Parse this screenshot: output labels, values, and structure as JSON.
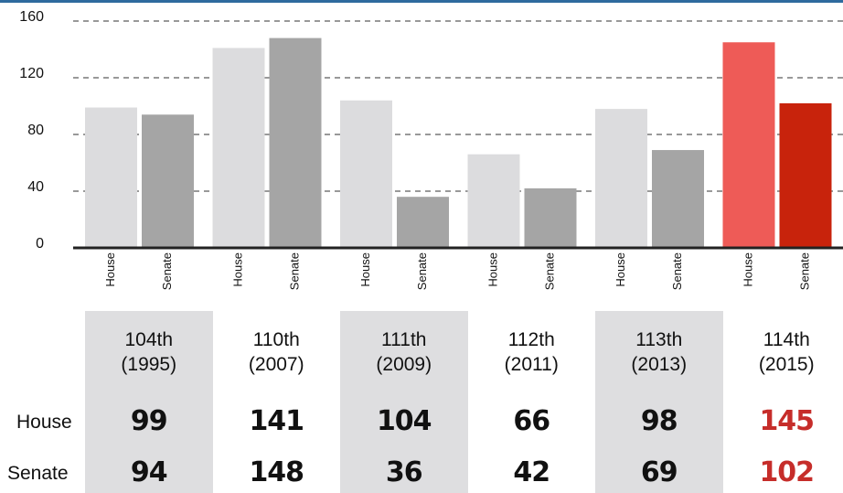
{
  "chart_data": {
    "type": "bar",
    "categories": [
      "104th\n(1995)",
      "110th\n(2007)",
      "111th\n(2009)",
      "112th\n(2011)",
      "113th\n(2013)",
      "114th\n(2015)"
    ],
    "series": [
      {
        "name": "House",
        "colors": [
          "#dcdcde",
          "#dcdcde",
          "#dcdcde",
          "#dcdcde",
          "#dcdcde",
          "#ee5b57"
        ],
        "values": [
          99,
          141,
          104,
          66,
          98,
          145
        ]
      },
      {
        "name": "Senate",
        "colors": [
          "#a5a5a5",
          "#a5a5a5",
          "#a5a5a5",
          "#a5a5a5",
          "#a5a5a5",
          "#c8230c"
        ],
        "values": [
          94,
          148,
          36,
          42,
          69,
          102
        ]
      }
    ],
    "ylim": [
      0,
      160
    ],
    "yticks": [
      0,
      40,
      80,
      120,
      160
    ],
    "grid": true,
    "shaded_columns": [
      0,
      2,
      4
    ],
    "highlight_index": 5,
    "highlight_text_color": "#c62d2a"
  }
}
